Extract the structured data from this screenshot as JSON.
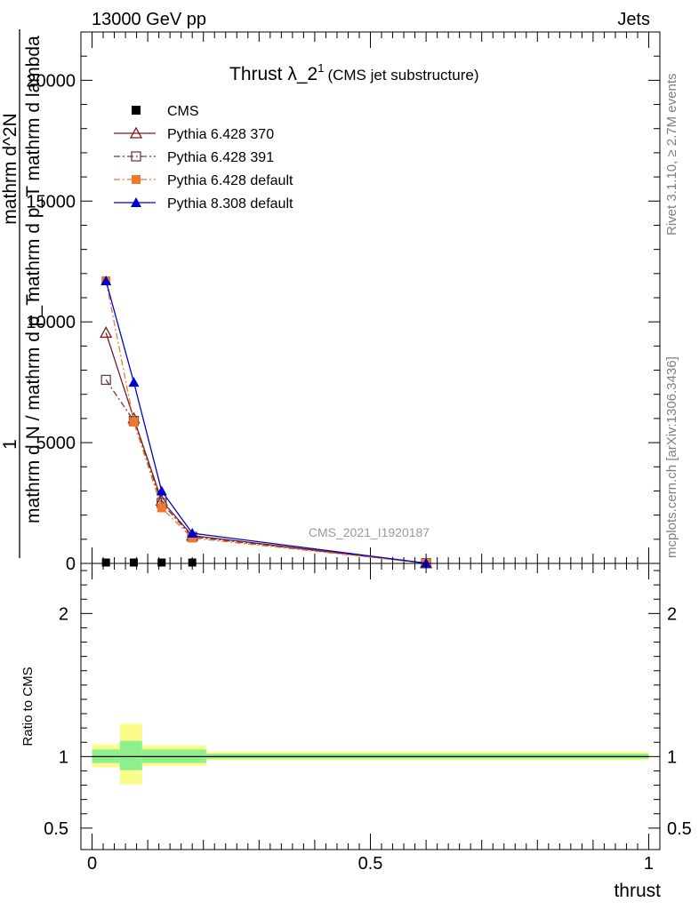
{
  "header": {
    "energy_label": "13000 GeV pp",
    "process_label": "Jets"
  },
  "side": {
    "rivet_label": "Rivet 3.1.10, ≥ 2.7M events",
    "mcplots_label": "mcplots.cern.ch [arXiv:1306.3436]"
  },
  "chart_data": [
    {
      "type": "line",
      "title": "Thrust λ_2",
      "title_sup": "1",
      "subtitle": "(CMS jet substructure)",
      "analysis_tag": "CMS_2021_I1920187",
      "ylabel_num": "1",
      "ylabel_den": "mathrm d N / mathrm d p_T",
      "ylabel_right_num": "mathrm d^2N",
      "ylabel_right_den": "mathrm d p_T mathrm d lambda",
      "ylim": [
        0,
        22000
      ],
      "y_ticks": [
        0,
        5000,
        10000,
        15000,
        20000
      ],
      "y_tick_labels": [
        "0",
        "5000",
        "10000",
        "15000",
        "20000"
      ],
      "xlim": [
        -0.02,
        1.02
      ],
      "x": [
        0.025,
        0.075,
        0.125,
        0.18,
        0.6
      ],
      "series": [
        {
          "name": "CMS",
          "style": "data",
          "color": "#000000",
          "marker": "square",
          "values": [
            0,
            0,
            0,
            0,
            0
          ]
        },
        {
          "name": "Pythia 6.428 370",
          "style": "solid",
          "color": "#7a1a1a",
          "marker": "open-triangle",
          "values": [
            9550,
            6000,
            2600,
            1150,
            10
          ]
        },
        {
          "name": "Pythia 6.428 391",
          "style": "dashdot",
          "color": "#6a3a4a",
          "marker": "open-square",
          "values": [
            7600,
            5900,
            2500,
            1100,
            10
          ]
        },
        {
          "name": "Pythia 6.428 default",
          "style": "dashdot",
          "color": "#f07a2a",
          "marker": "filled-square",
          "values": [
            11700,
            5850,
            2300,
            1050,
            10
          ]
        },
        {
          "name": "Pythia 8.308 default",
          "style": "solid",
          "color": "#0000d0",
          "marker": "filled-triangle",
          "values": [
            11700,
            7500,
            3000,
            1250,
            10
          ]
        }
      ]
    },
    {
      "type": "area",
      "ylabel": "Ratio to CMS",
      "xlabel": "thrust",
      "ylim": [
        0.35,
        2.35
      ],
      "y_ticks": [
        0.5,
        1,
        2
      ],
      "y_tick_labels": [
        "0.5",
        "1",
        "2"
      ],
      "x_ticks": [
        0,
        0.5,
        1
      ],
      "x_tick_labels": [
        "0",
        "0.5",
        "1"
      ],
      "bands": [
        {
          "x0": 0.0,
          "x1": 0.05,
          "stat_lo": 0.955,
          "stat_hi": 1.05,
          "tot_lo": 0.925,
          "tot_hi": 1.085
        },
        {
          "x0": 0.05,
          "x1": 0.09,
          "stat_lo": 0.905,
          "stat_hi": 1.11,
          "tot_lo": 0.805,
          "tot_hi": 1.23
        },
        {
          "x0": 0.09,
          "x1": 0.205,
          "stat_lo": 0.955,
          "stat_hi": 1.05,
          "tot_lo": 0.935,
          "tot_hi": 1.08
        },
        {
          "x0": 0.205,
          "x1": 1.0,
          "stat_lo": 0.985,
          "stat_hi": 1.02,
          "tot_lo": 0.975,
          "tot_hi": 1.035
        }
      ],
      "colors": {
        "stat": "#8df08d",
        "total": "#fbfc8c"
      }
    }
  ]
}
